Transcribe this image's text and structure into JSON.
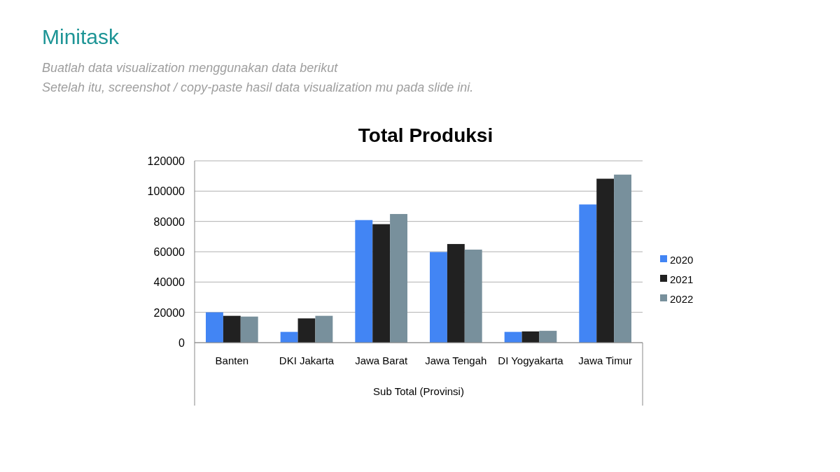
{
  "chart_data": {
    "type": "bar",
    "title": "Total Produksi",
    "xlabel": "Sub Total (Provinsi)",
    "annotations": [
      "Minitask",
      "Buatlah data visualization menggunakan data berikut",
      "Setelah itu, screenshot / copy-paste hasil data visualization mu pada slide ini."
    ],
    "categories": [
      "Banten",
      "DKI Jakarta",
      "Jawa Barat",
      "Jawa Tengah",
      "DI Yogyakarta",
      "Jawa Timur"
    ],
    "series": [
      {
        "name": "2020",
        "color": "#4285f4",
        "values": [
          20000,
          7100,
          80900,
          59800,
          7100,
          91200
        ]
      },
      {
        "name": "2021",
        "color": "#212121",
        "values": [
          17700,
          16000,
          78200,
          65100,
          7400,
          108200
        ]
      },
      {
        "name": "2022",
        "color": "#78909c",
        "values": [
          17200,
          17700,
          84900,
          61400,
          7800,
          110900
        ]
      }
    ],
    "ylim": [
      0,
      120000
    ],
    "yticks": [
      0,
      20000,
      40000,
      60000,
      80000,
      100000,
      120000
    ],
    "grid": "y",
    "legend": "right"
  }
}
